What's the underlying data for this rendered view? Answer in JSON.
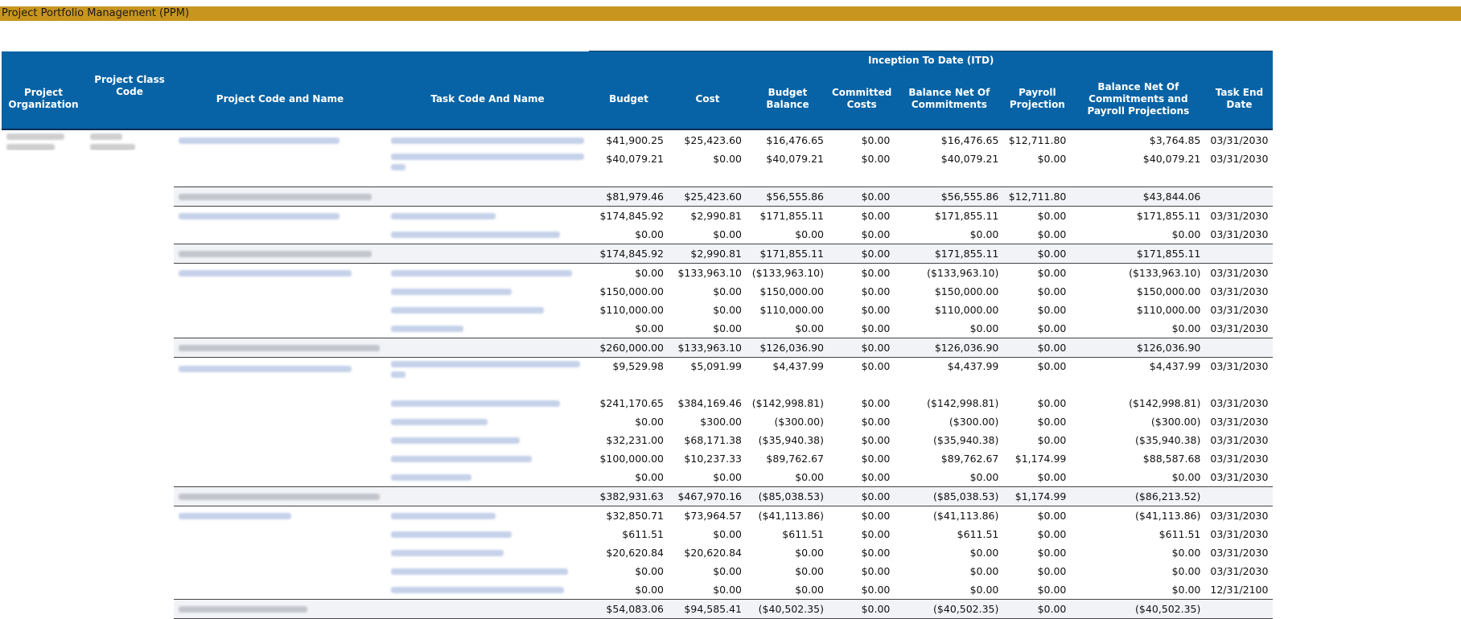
{
  "app": {
    "title": "Project Portfolio Management (PPM)"
  },
  "report": {
    "band_label": "Inception To Date (ITD)",
    "headers": {
      "project_org": "Project Organization",
      "project_class": "Project Class Code",
      "project_code_name": "Project Code and Name",
      "task_code_name": "Task Code And Name",
      "budget": "Budget",
      "cost": "Cost",
      "budget_balance": "Budget Balance",
      "committed_costs": "Committed Costs",
      "balance_net_commitments": "Balance Net Of Commitments",
      "payroll_projection": "Payroll Projection",
      "balance_net_comm_payroll": "Balance Net Of Commitments and Payroll Projections",
      "task_end_date": "Task End Date"
    },
    "rows": [
      {
        "budget": "$41,900.25",
        "cost": "$25,423.60",
        "bbal": "$16,476.65",
        "committed": "$0.00",
        "bnc": "$16,476.65",
        "payroll": "$12,711.80",
        "bncp": "$3,764.85",
        "end": "03/31/2030"
      },
      {
        "budget": "$40,079.21",
        "cost": "$0.00",
        "bbal": "$40,079.21",
        "committed": "$0.00",
        "bnc": "$40,079.21",
        "payroll": "$0.00",
        "bncp": "$40,079.21",
        "end": "03/31/2030"
      },
      {
        "budget": "$81,979.46",
        "cost": "$25,423.60",
        "bbal": "$56,555.86",
        "committed": "$0.00",
        "bnc": "$56,555.86",
        "payroll": "$12,711.80",
        "bncp": "$43,844.06",
        "end": ""
      },
      {
        "budget": "$174,845.92",
        "cost": "$2,990.81",
        "bbal": "$171,855.11",
        "committed": "$0.00",
        "bnc": "$171,855.11",
        "payroll": "$0.00",
        "bncp": "$171,855.11",
        "end": "03/31/2030"
      },
      {
        "budget": "$0.00",
        "cost": "$0.00",
        "bbal": "$0.00",
        "committed": "$0.00",
        "bnc": "$0.00",
        "payroll": "$0.00",
        "bncp": "$0.00",
        "end": "03/31/2030"
      },
      {
        "budget": "$174,845.92",
        "cost": "$2,990.81",
        "bbal": "$171,855.11",
        "committed": "$0.00",
        "bnc": "$171,855.11",
        "payroll": "$0.00",
        "bncp": "$171,855.11",
        "end": ""
      },
      {
        "budget": "$0.00",
        "cost": "$133,963.10",
        "bbal": "($133,963.10)",
        "committed": "$0.00",
        "bnc": "($133,963.10)",
        "payroll": "$0.00",
        "bncp": "($133,963.10)",
        "end": "03/31/2030"
      },
      {
        "budget": "$150,000.00",
        "cost": "$0.00",
        "bbal": "$150,000.00",
        "committed": "$0.00",
        "bnc": "$150,000.00",
        "payroll": "$0.00",
        "bncp": "$150,000.00",
        "end": "03/31/2030"
      },
      {
        "budget": "$110,000.00",
        "cost": "$0.00",
        "bbal": "$110,000.00",
        "committed": "$0.00",
        "bnc": "$110,000.00",
        "payroll": "$0.00",
        "bncp": "$110,000.00",
        "end": "03/31/2030"
      },
      {
        "budget": "$0.00",
        "cost": "$0.00",
        "bbal": "$0.00",
        "committed": "$0.00",
        "bnc": "$0.00",
        "payroll": "$0.00",
        "bncp": "$0.00",
        "end": "03/31/2030"
      },
      {
        "budget": "$260,000.00",
        "cost": "$133,963.10",
        "bbal": "$126,036.90",
        "committed": "$0.00",
        "bnc": "$126,036.90",
        "payroll": "$0.00",
        "bncp": "$126,036.90",
        "end": ""
      },
      {
        "budget": "$9,529.98",
        "cost": "$5,091.99",
        "bbal": "$4,437.99",
        "committed": "$0.00",
        "bnc": "$4,437.99",
        "payroll": "$0.00",
        "bncp": "$4,437.99",
        "end": "03/31/2030"
      },
      {
        "budget": "$241,170.65",
        "cost": "$384,169.46",
        "bbal": "($142,998.81)",
        "committed": "$0.00",
        "bnc": "($142,998.81)",
        "payroll": "$0.00",
        "bncp": "($142,998.81)",
        "end": "03/31/2030"
      },
      {
        "budget": "$0.00",
        "cost": "$300.00",
        "bbal": "($300.00)",
        "committed": "$0.00",
        "bnc": "($300.00)",
        "payroll": "$0.00",
        "bncp": "($300.00)",
        "end": "03/31/2030"
      },
      {
        "budget": "$32,231.00",
        "cost": "$68,171.38",
        "bbal": "($35,940.38)",
        "committed": "$0.00",
        "bnc": "($35,940.38)",
        "payroll": "$0.00",
        "bncp": "($35,940.38)",
        "end": "03/31/2030"
      },
      {
        "budget": "$100,000.00",
        "cost": "$10,237.33",
        "bbal": "$89,762.67",
        "committed": "$0.00",
        "bnc": "$89,762.67",
        "payroll": "$1,174.99",
        "bncp": "$88,587.68",
        "end": "03/31/2030"
      },
      {
        "budget": "$0.00",
        "cost": "$0.00",
        "bbal": "$0.00",
        "committed": "$0.00",
        "bnc": "$0.00",
        "payroll": "$0.00",
        "bncp": "$0.00",
        "end": "03/31/2030"
      },
      {
        "budget": "$382,931.63",
        "cost": "$467,970.16",
        "bbal": "($85,038.53)",
        "committed": "$0.00",
        "bnc": "($85,038.53)",
        "payroll": "$1,174.99",
        "bncp": "($86,213.52)",
        "end": ""
      },
      {
        "budget": "$32,850.71",
        "cost": "$73,964.57",
        "bbal": "($41,113.86)",
        "committed": "$0.00",
        "bnc": "($41,113.86)",
        "payroll": "$0.00",
        "bncp": "($41,113.86)",
        "end": "03/31/2030"
      },
      {
        "budget": "$611.51",
        "cost": "$0.00",
        "bbal": "$611.51",
        "committed": "$0.00",
        "bnc": "$611.51",
        "payroll": "$0.00",
        "bncp": "$611.51",
        "end": "03/31/2030"
      },
      {
        "budget": "$20,620.84",
        "cost": "$20,620.84",
        "bbal": "$0.00",
        "committed": "$0.00",
        "bnc": "$0.00",
        "payroll": "$0.00",
        "bncp": "$0.00",
        "end": "03/31/2030"
      },
      {
        "budget": "$0.00",
        "cost": "$0.00",
        "bbal": "$0.00",
        "committed": "$0.00",
        "bnc": "$0.00",
        "payroll": "$0.00",
        "bncp": "$0.00",
        "end": "03/31/2030"
      },
      {
        "budget": "$0.00",
        "cost": "$0.00",
        "bbal": "$0.00",
        "committed": "$0.00",
        "bnc": "$0.00",
        "payroll": "$0.00",
        "bncp": "$0.00",
        "end": "12/31/2100"
      },
      {
        "budget": "$54,083.06",
        "cost": "$94,585.41",
        "bbal": "($40,502.35)",
        "committed": "$0.00",
        "bnc": "($40,502.35)",
        "payroll": "$0.00",
        "bncp": "($40,502.35)",
        "end": ""
      }
    ]
  }
}
